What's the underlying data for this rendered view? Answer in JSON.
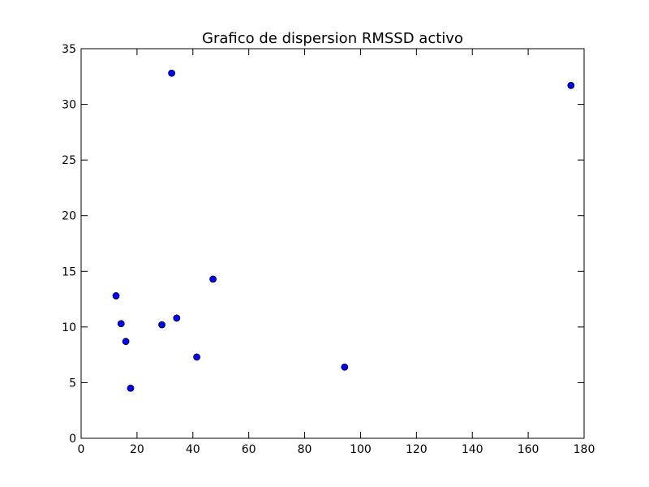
{
  "chart_data": {
    "type": "scatter",
    "title": "Grafico de dispersion RMSSD activo",
    "xlabel": "",
    "ylabel": "",
    "xlim": [
      0,
      180
    ],
    "ylim": [
      0,
      35
    ],
    "x_ticks": [
      0,
      20,
      40,
      60,
      80,
      100,
      120,
      140,
      160,
      180
    ],
    "y_ticks": [
      0,
      5,
      10,
      15,
      20,
      25,
      30,
      35
    ],
    "grid": false,
    "series": [
      {
        "color": "#0000ff",
        "marker": "circle",
        "points": [
          {
            "x": 12.5,
            "y": 12.8
          },
          {
            "x": 14.3,
            "y": 10.3
          },
          {
            "x": 16.0,
            "y": 8.7
          },
          {
            "x": 17.7,
            "y": 4.5
          },
          {
            "x": 28.9,
            "y": 10.2
          },
          {
            "x": 32.4,
            "y": 32.8
          },
          {
            "x": 34.2,
            "y": 10.8
          },
          {
            "x": 41.4,
            "y": 7.3
          },
          {
            "x": 47.2,
            "y": 14.3
          },
          {
            "x": 94.3,
            "y": 6.4
          },
          {
            "x": 175.3,
            "y": 31.7
          }
        ]
      }
    ]
  }
}
